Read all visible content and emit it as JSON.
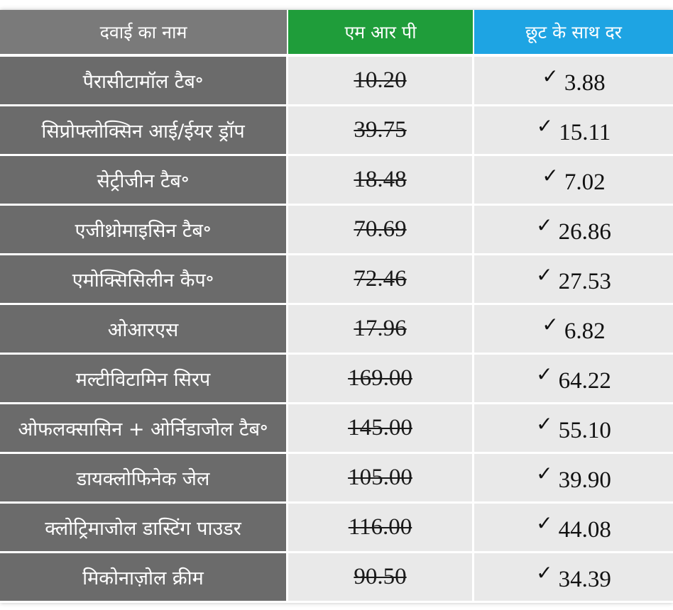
{
  "table": {
    "headers": {
      "name": "दवाई का नाम",
      "mrp": "एम आर पी",
      "discount": "छूट के साथ दर"
    },
    "check_icon": "check-mark-icon",
    "rows": [
      {
        "name": "पैरासीटामॉल टैब॰",
        "mrp": "10.20",
        "discount": "3.88"
      },
      {
        "name": "सिप्रोफ्लोक्सिन आई/ईयर ड्रॉप",
        "mrp": "39.75",
        "discount": "15.11"
      },
      {
        "name": "सेट्रीजीन टैब॰",
        "mrp": "18.48",
        "discount": "7.02"
      },
      {
        "name": "एजीथ्रोमाइसिन टैब॰",
        "mrp": "70.69",
        "discount": "26.86"
      },
      {
        "name": "एमोक्सिसिलीन कैप॰",
        "mrp": "72.46",
        "discount": "27.53"
      },
      {
        "name": "ओआरएस",
        "mrp": "17.96",
        "discount": "6.82"
      },
      {
        "name": "मल्टीविटामिन सिरप",
        "mrp": "169.00",
        "discount": "64.22"
      },
      {
        "name": "ओफलक्सासिन + ओर्निडाजोल टैब॰",
        "mrp": "145.00",
        "discount": "55.10"
      },
      {
        "name": "डायक्लोफिनेक जेल",
        "mrp": "105.00",
        "discount": "39.90"
      },
      {
        "name": "क्लोट्रिमाजोल डास्टिंग पाउडर",
        "mrp": "116.00",
        "discount": "44.08"
      },
      {
        "name": "मिकोनाज़ोल क्रीम",
        "mrp": "90.50",
        "discount": "34.39"
      }
    ]
  },
  "colors": {
    "header_name": "#7a7a7a",
    "header_mrp": "#1f9d3a",
    "header_discount": "#1ea4e3",
    "name_cell": "#6b6b6b",
    "value_cell": "#e9e9e9"
  }
}
